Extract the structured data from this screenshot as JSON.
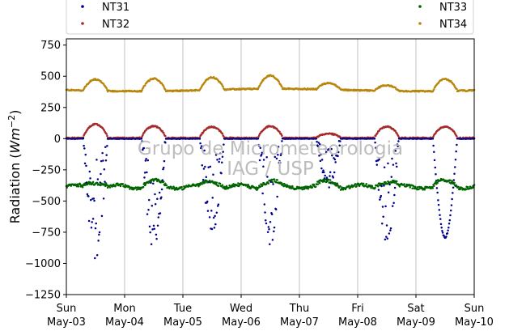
{
  "chart_data": {
    "type": "scatter",
    "title": "",
    "xlabel": "",
    "ylabel": "Radiation",
    "ylabel_unit": "Wm",
    "ylabel_exp": "−2",
    "ylim": [
      -1250,
      800
    ],
    "xlim": [
      "2020-05-03",
      "2020-05-10"
    ],
    "yticks": [
      750,
      500,
      250,
      0,
      -250,
      -500,
      -750,
      -1000,
      -1250
    ],
    "ytick_labels": [
      "750",
      "500",
      "250",
      "0",
      "−250",
      "−500",
      "−750",
      "−1000",
      "−1250"
    ],
    "xticks": [
      {
        "day": "Sun",
        "date": "May-03"
      },
      {
        "day": "Mon",
        "date": "May-04"
      },
      {
        "day": "Tue",
        "date": "May-05"
      },
      {
        "day": "Wed",
        "date": "May-06"
      },
      {
        "day": "Thu",
        "date": "May-07"
      },
      {
        "day": "Fri",
        "date": "May-08"
      },
      {
        "day": "Sat",
        "date": "May-09"
      },
      {
        "day": "Sun",
        "date": "May-10"
      }
    ],
    "grid": "x-only",
    "legend_placement": "top",
    "watermark": [
      "Grupo de Micrometeorologia",
      "IAG / USP"
    ],
    "series": [
      {
        "name": "NT31",
        "color": "#00008b",
        "daily_min": [
          -1000,
          -900,
          -800,
          -880,
          -400,
          -850,
          -790
        ],
        "night": 0
      },
      {
        "name": "NT32",
        "color": "#a52a2a",
        "daily_max": [
          115,
          100,
          95,
          100,
          40,
          95,
          95
        ],
        "night": 5
      },
      {
        "name": "NT33",
        "color": "#006400",
        "night": -385,
        "day": -345
      },
      {
        "name": "NT34",
        "color": "#b8860b",
        "daily_max": [
          480,
          490,
          490,
          495,
          440,
          435,
          485
        ],
        "night": 390
      }
    ]
  }
}
